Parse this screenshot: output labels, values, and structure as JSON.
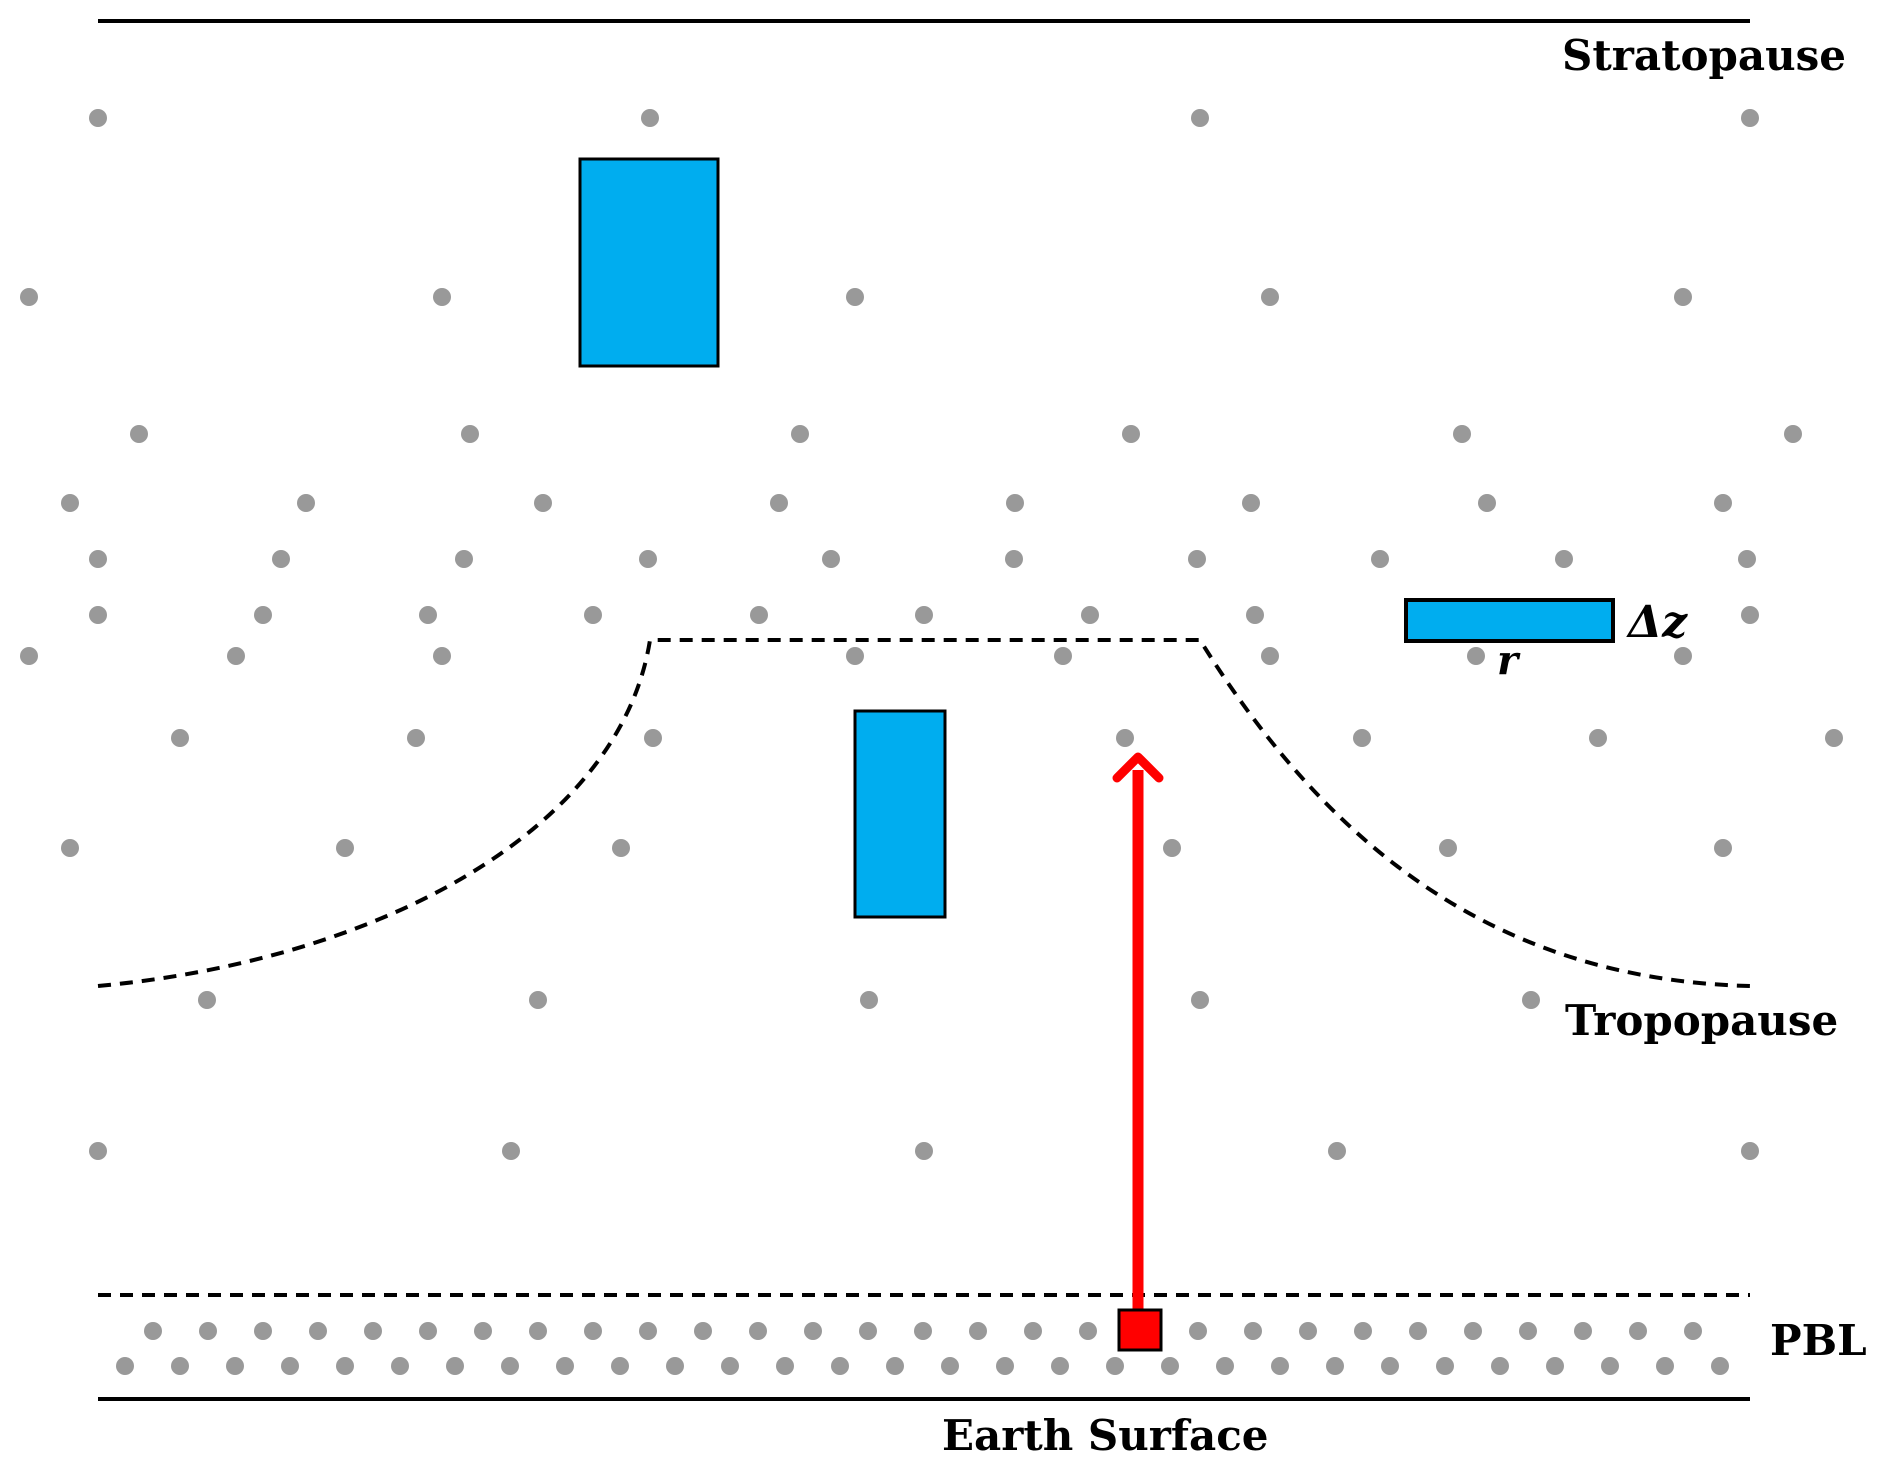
{
  "labels": {
    "stratopause": "Stratopause",
    "tropopause": "Tropopause",
    "pbl": "PBL",
    "earth_surface": "Earth Surface",
    "delta_z": "Δz",
    "r": "r"
  },
  "colors": {
    "particle_fill": "#00adef",
    "particle_stroke": "#000000",
    "source_fill": "#ff0000",
    "arrow": "#ff0000",
    "dot": "#999999",
    "line": "#000000"
  },
  "icons": {
    "arrow": "upward-arrow-icon",
    "source": "surface-source-square"
  }
}
